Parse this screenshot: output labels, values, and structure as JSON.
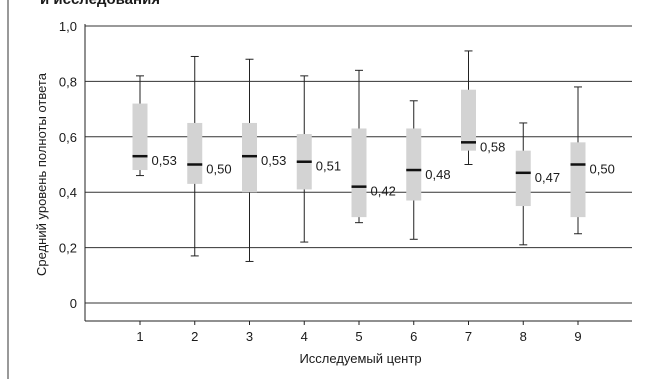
{
  "chart_data": {
    "type": "boxplot",
    "clipped_header": "и исследования",
    "xlabel": "Исследуемый центр",
    "ylabel": "Средний уровень полноты ответа",
    "ylim": [
      0,
      1.0
    ],
    "y_ticks": [
      0,
      0.2,
      0.4,
      0.6,
      0.8,
      1.0
    ],
    "y_tick_labels": [
      "0",
      "0,2",
      "0,4",
      "0,6",
      "0,8",
      "1,0"
    ],
    "grid": true,
    "categories": [
      "1",
      "2",
      "3",
      "4",
      "5",
      "6",
      "7",
      "8",
      "9"
    ],
    "boxes": [
      {
        "center": "1",
        "min": 0.46,
        "q1": 0.48,
        "median": 0.53,
        "q3": 0.72,
        "max": 0.82,
        "label": "0,53"
      },
      {
        "center": "2",
        "min": 0.17,
        "q1": 0.43,
        "median": 0.5,
        "q3": 0.65,
        "max": 0.89,
        "label": "0,50"
      },
      {
        "center": "3",
        "min": 0.15,
        "q1": 0.4,
        "median": 0.53,
        "q3": 0.65,
        "max": 0.88,
        "label": "0,53"
      },
      {
        "center": "4",
        "min": 0.22,
        "q1": 0.41,
        "median": 0.51,
        "q3": 0.61,
        "max": 0.82,
        "label": "0,51"
      },
      {
        "center": "5",
        "min": 0.29,
        "q1": 0.31,
        "median": 0.42,
        "q3": 0.63,
        "max": 0.84,
        "label": "0,42"
      },
      {
        "center": "6",
        "min": 0.23,
        "q1": 0.37,
        "median": 0.48,
        "q3": 0.63,
        "max": 0.73,
        "label": "0,48"
      },
      {
        "center": "7",
        "min": 0.5,
        "q1": 0.55,
        "median": 0.58,
        "q3": 0.77,
        "max": 0.91,
        "label": "0,58"
      },
      {
        "center": "8",
        "min": 0.21,
        "q1": 0.35,
        "median": 0.47,
        "q3": 0.55,
        "max": 0.65,
        "label": "0,47"
      },
      {
        "center": "9",
        "min": 0.25,
        "q1": 0.31,
        "median": 0.5,
        "q3": 0.58,
        "max": 0.78,
        "label": "0,50"
      }
    ],
    "colors": {
      "box": "#d3d3d3",
      "median": "#111111",
      "whisker": "#222222",
      "grid": "#333333"
    }
  }
}
